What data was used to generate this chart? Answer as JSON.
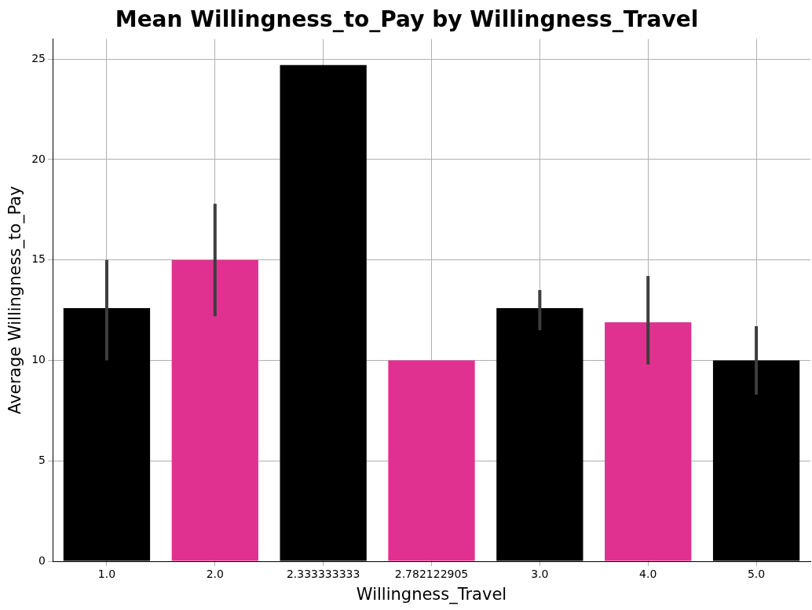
{
  "chart_data": {
    "type": "bar",
    "title": "Mean Willingness_to_Pay by Willingness_Travel",
    "xlabel": "Willingness_Travel",
    "ylabel": "Average Willingness_to_Pay",
    "categories": [
      "1.0",
      "2.0",
      "2.333333333",
      "2.782122905",
      "3.0",
      "4.0",
      "5.0"
    ],
    "values": [
      12.6,
      15.0,
      24.7,
      10.0,
      12.6,
      11.9,
      10.0
    ],
    "colors": [
      "#000000",
      "#e03190",
      "#000000",
      "#e03190",
      "#000000",
      "#e03190",
      "#000000"
    ],
    "errors": [
      [
        10.0,
        15.0
      ],
      [
        12.2,
        17.8
      ],
      null,
      null,
      [
        11.5,
        13.5
      ],
      [
        9.8,
        14.2
      ],
      [
        8.3,
        11.7
      ]
    ],
    "ylim": [
      0,
      26
    ],
    "yticks": [
      0,
      5,
      10,
      15,
      20,
      25
    ],
    "grid": true,
    "legend": false
  }
}
